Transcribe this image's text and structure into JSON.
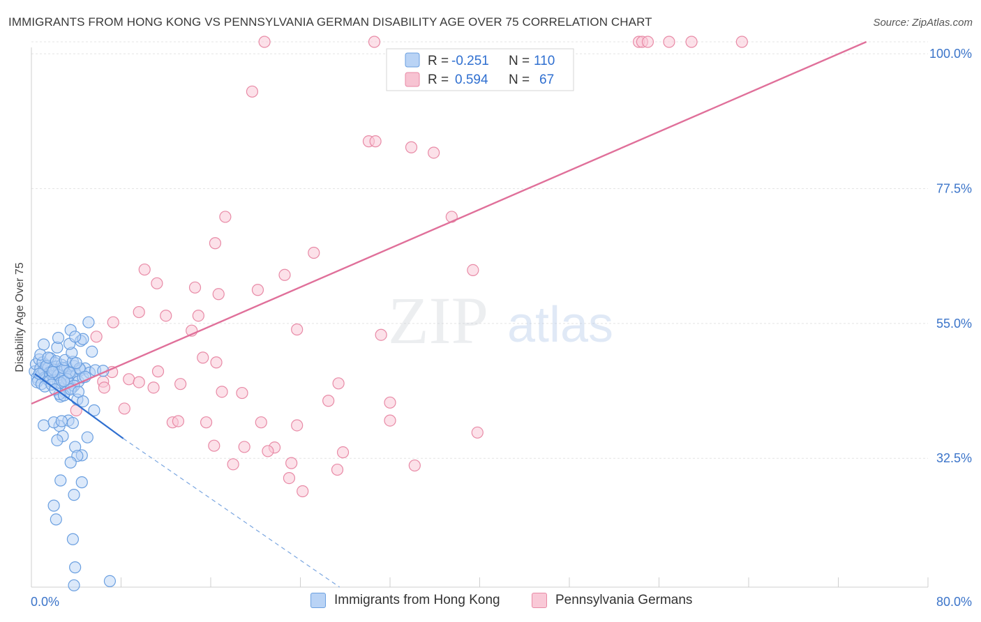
{
  "header": {
    "title": "IMMIGRANTS FROM HONG KONG VS PENNSYLVANIA GERMAN DISABILITY AGE OVER 75 CORRELATION CHART",
    "source": "Source: ZipAtlas.com"
  },
  "watermark": {
    "zip": "ZIP",
    "atlas": "atlas"
  },
  "legend_box": {
    "rows": [
      {
        "r_label": "R =",
        "r_value": "-0.251",
        "n_label": "N =",
        "n_value": "110",
        "color": "#6a9fe0",
        "fill": "#b9d3f5"
      },
      {
        "r_label": "R =",
        "r_value": "0.594",
        "n_label": "N =",
        "n_value": "67",
        "color": "#e88aa6",
        "fill": "#f7c3d2"
      }
    ]
  },
  "bottom_legend": [
    {
      "label": "Immigrants from Hong Kong",
      "color": "#b9d3f5",
      "stroke": "#6a9fe0"
    },
    {
      "label": "Pennsylvania Germans",
      "color": "#f9c9d7",
      "stroke": "#e88aa6"
    }
  ],
  "chart_data": {
    "type": "scatter",
    "title": "IMMIGRANTS FROM HONG KONG VS PENNSYLVANIA GERMAN DISABILITY AGE OVER 75 CORRELATION CHART",
    "xlabel": "",
    "ylabel": "Disability Age Over 75",
    "xlim": [
      0,
      80
    ],
    "ylim": [
      11,
      102
    ],
    "x_tick_labels": [
      "0.0%",
      "80.0%"
    ],
    "y_ticks": [
      32.5,
      55.0,
      77.5,
      100.0
    ],
    "y_tick_labels": [
      "32.5%",
      "55.0%",
      "77.5%",
      "100.0%"
    ],
    "grid": true,
    "series": [
      {
        "name": "Immigrants from Hong Kong",
        "color": "#6a9fe0",
        "fill": "#b9d3f5",
        "points": [
          [
            0.3,
            47.0
          ],
          [
            0.4,
            48.2
          ],
          [
            0.5,
            46.0
          ],
          [
            0.6,
            45.5
          ],
          [
            0.7,
            49.0
          ],
          [
            0.8,
            47.5
          ],
          [
            0.9,
            46.5
          ],
          [
            1.0,
            48.5
          ],
          [
            1.1,
            47.2
          ],
          [
            1.2,
            46.0
          ],
          [
            1.3,
            45.8
          ],
          [
            1.4,
            48.0
          ],
          [
            1.5,
            47.6
          ],
          [
            1.6,
            46.8
          ],
          [
            1.7,
            49.2
          ],
          [
            1.8,
            47.0
          ],
          [
            1.9,
            46.2
          ],
          [
            2.0,
            45.6
          ],
          [
            2.1,
            48.4
          ],
          [
            2.2,
            47.8
          ],
          [
            2.3,
            46.6
          ],
          [
            2.4,
            45.2
          ],
          [
            2.5,
            47.4
          ],
          [
            2.6,
            46.9
          ],
          [
            2.7,
            48.1
          ],
          [
            2.8,
            45.9
          ],
          [
            2.9,
            47.1
          ],
          [
            3.0,
            46.3
          ],
          [
            3.1,
            44.8
          ],
          [
            3.2,
            47.7
          ],
          [
            3.3,
            46.1
          ],
          [
            3.4,
            45.0
          ],
          [
            3.5,
            46.7
          ],
          [
            3.6,
            44.2
          ],
          [
            3.8,
            47.9
          ],
          [
            4.0,
            46.4
          ],
          [
            4.2,
            45.3
          ],
          [
            4.4,
            47.2
          ],
          [
            4.6,
            46.0
          ],
          [
            0.5,
            45.2
          ],
          [
            0.9,
            44.9
          ],
          [
            1.3,
            47.9
          ],
          [
            1.6,
            45.4
          ],
          [
            2.0,
            47.3
          ],
          [
            2.4,
            46.4
          ],
          [
            2.8,
            47.6
          ],
          [
            3.2,
            45.7
          ],
          [
            0.8,
            49.8
          ],
          [
            1.5,
            49.3
          ],
          [
            2.2,
            48.7
          ],
          [
            3.0,
            48.9
          ],
          [
            3.7,
            48.6
          ],
          [
            1.1,
            51.5
          ],
          [
            2.3,
            51.0
          ],
          [
            3.6,
            50.1
          ],
          [
            2.4,
            52.6
          ],
          [
            3.4,
            51.6
          ],
          [
            4.4,
            52.1
          ],
          [
            5.4,
            50.3
          ],
          [
            4.6,
            52.4
          ],
          [
            3.5,
            53.9
          ],
          [
            3.9,
            52.8
          ],
          [
            5.1,
            55.2
          ],
          [
            4.8,
            47.5
          ],
          [
            5.2,
            46.8
          ],
          [
            5.7,
            47.2
          ],
          [
            6.4,
            47.1
          ],
          [
            4.3,
            47.5
          ],
          [
            3.8,
            44.6
          ],
          [
            3.0,
            43.5
          ],
          [
            2.6,
            42.8
          ],
          [
            4.1,
            42.3
          ],
          [
            4.6,
            42.0
          ],
          [
            2.5,
            43.2
          ],
          [
            5.6,
            40.5
          ],
          [
            3.3,
            38.8
          ],
          [
            2.5,
            37.9
          ],
          [
            2.8,
            36.2
          ],
          [
            2.3,
            35.5
          ],
          [
            3.9,
            34.4
          ],
          [
            4.5,
            33.0
          ],
          [
            4.1,
            32.9
          ],
          [
            3.5,
            31.8
          ],
          [
            2.6,
            28.8
          ],
          [
            4.5,
            28.5
          ],
          [
            3.8,
            26.4
          ],
          [
            2.0,
            24.6
          ],
          [
            2.2,
            22.3
          ],
          [
            3.7,
            19.0
          ],
          [
            3.9,
            14.3
          ],
          [
            3.8,
            11.3
          ],
          [
            7.0,
            12.0
          ],
          [
            1.1,
            38.0
          ],
          [
            2.0,
            38.5
          ],
          [
            2.7,
            38.7
          ],
          [
            3.7,
            38.4
          ],
          [
            5.0,
            36.0
          ],
          [
            2.9,
            43.0
          ],
          [
            3.5,
            44.0
          ],
          [
            4.2,
            43.6
          ],
          [
            1.9,
            46.9
          ],
          [
            2.6,
            45.1
          ],
          [
            0.7,
            46.6
          ],
          [
            1.2,
            44.5
          ],
          [
            1.8,
            44.8
          ],
          [
            2.9,
            45.4
          ],
          [
            3.4,
            46.8
          ],
          [
            4.0,
            48.4
          ],
          [
            4.8,
            46.1
          ],
          [
            2.1,
            44.0
          ]
        ],
        "trend": {
          "x_start": 0.3,
          "y_start": 46.6,
          "x_solid_end": 8.2,
          "y_solid_end": 35.8,
          "x_dash_end": 27.5,
          "y_dash_end": 11.0
        }
      },
      {
        "name": "Pennsylvania Germans",
        "color": "#e88aa6",
        "fill": "#f9c9d7",
        "points": [
          [
            20.8,
            102.0
          ],
          [
            30.6,
            102.0
          ],
          [
            54.2,
            102.0
          ],
          [
            54.5,
            102.0
          ],
          [
            55.0,
            102.0
          ],
          [
            56.9,
            102.0
          ],
          [
            58.9,
            102.0
          ],
          [
            63.4,
            102.0
          ],
          [
            19.7,
            93.7
          ],
          [
            30.1,
            85.4
          ],
          [
            30.7,
            85.4
          ],
          [
            33.9,
            84.4
          ],
          [
            35.9,
            83.5
          ],
          [
            17.3,
            72.8
          ],
          [
            37.5,
            72.8
          ],
          [
            16.4,
            68.4
          ],
          [
            25.2,
            66.8
          ],
          [
            10.1,
            64.0
          ],
          [
            39.4,
            63.9
          ],
          [
            22.6,
            63.1
          ],
          [
            11.2,
            61.7
          ],
          [
            14.6,
            61.0
          ],
          [
            20.2,
            60.6
          ],
          [
            7.3,
            55.2
          ],
          [
            14.3,
            53.8
          ],
          [
            5.8,
            52.8
          ],
          [
            9.6,
            56.9
          ],
          [
            12.0,
            56.3
          ],
          [
            16.7,
            59.9
          ],
          [
            14.9,
            56.3
          ],
          [
            23.7,
            54.0
          ],
          [
            15.3,
            49.3
          ],
          [
            16.5,
            48.5
          ],
          [
            31.2,
            53.1
          ],
          [
            11.3,
            47.0
          ],
          [
            7.2,
            46.9
          ],
          [
            8.7,
            45.7
          ],
          [
            9.6,
            45.2
          ],
          [
            6.4,
            45.3
          ],
          [
            6.5,
            44.3
          ],
          [
            10.9,
            44.3
          ],
          [
            13.3,
            44.9
          ],
          [
            17.0,
            43.6
          ],
          [
            18.8,
            43.4
          ],
          [
            26.5,
            42.1
          ],
          [
            32.0,
            41.8
          ],
          [
            8.3,
            40.8
          ],
          [
            12.6,
            38.5
          ],
          [
            13.1,
            38.7
          ],
          [
            15.6,
            38.5
          ],
          [
            23.7,
            38.0
          ],
          [
            20.5,
            38.5
          ],
          [
            39.8,
            36.8
          ],
          [
            32.0,
            38.8
          ],
          [
            16.3,
            34.6
          ],
          [
            19.0,
            34.4
          ],
          [
            21.7,
            34.3
          ],
          [
            23.2,
            31.7
          ],
          [
            27.3,
            30.6
          ],
          [
            34.2,
            31.3
          ],
          [
            21.1,
            33.7
          ],
          [
            18.0,
            31.5
          ],
          [
            23.0,
            29.2
          ],
          [
            27.8,
            33.5
          ],
          [
            24.2,
            27.0
          ],
          [
            27.4,
            45.0
          ],
          [
            4.0,
            40.5
          ]
        ],
        "trend": {
          "x_start": 0.0,
          "y_start": 41.6,
          "x_end": 74.5,
          "y_end": 102.0
        }
      }
    ]
  }
}
